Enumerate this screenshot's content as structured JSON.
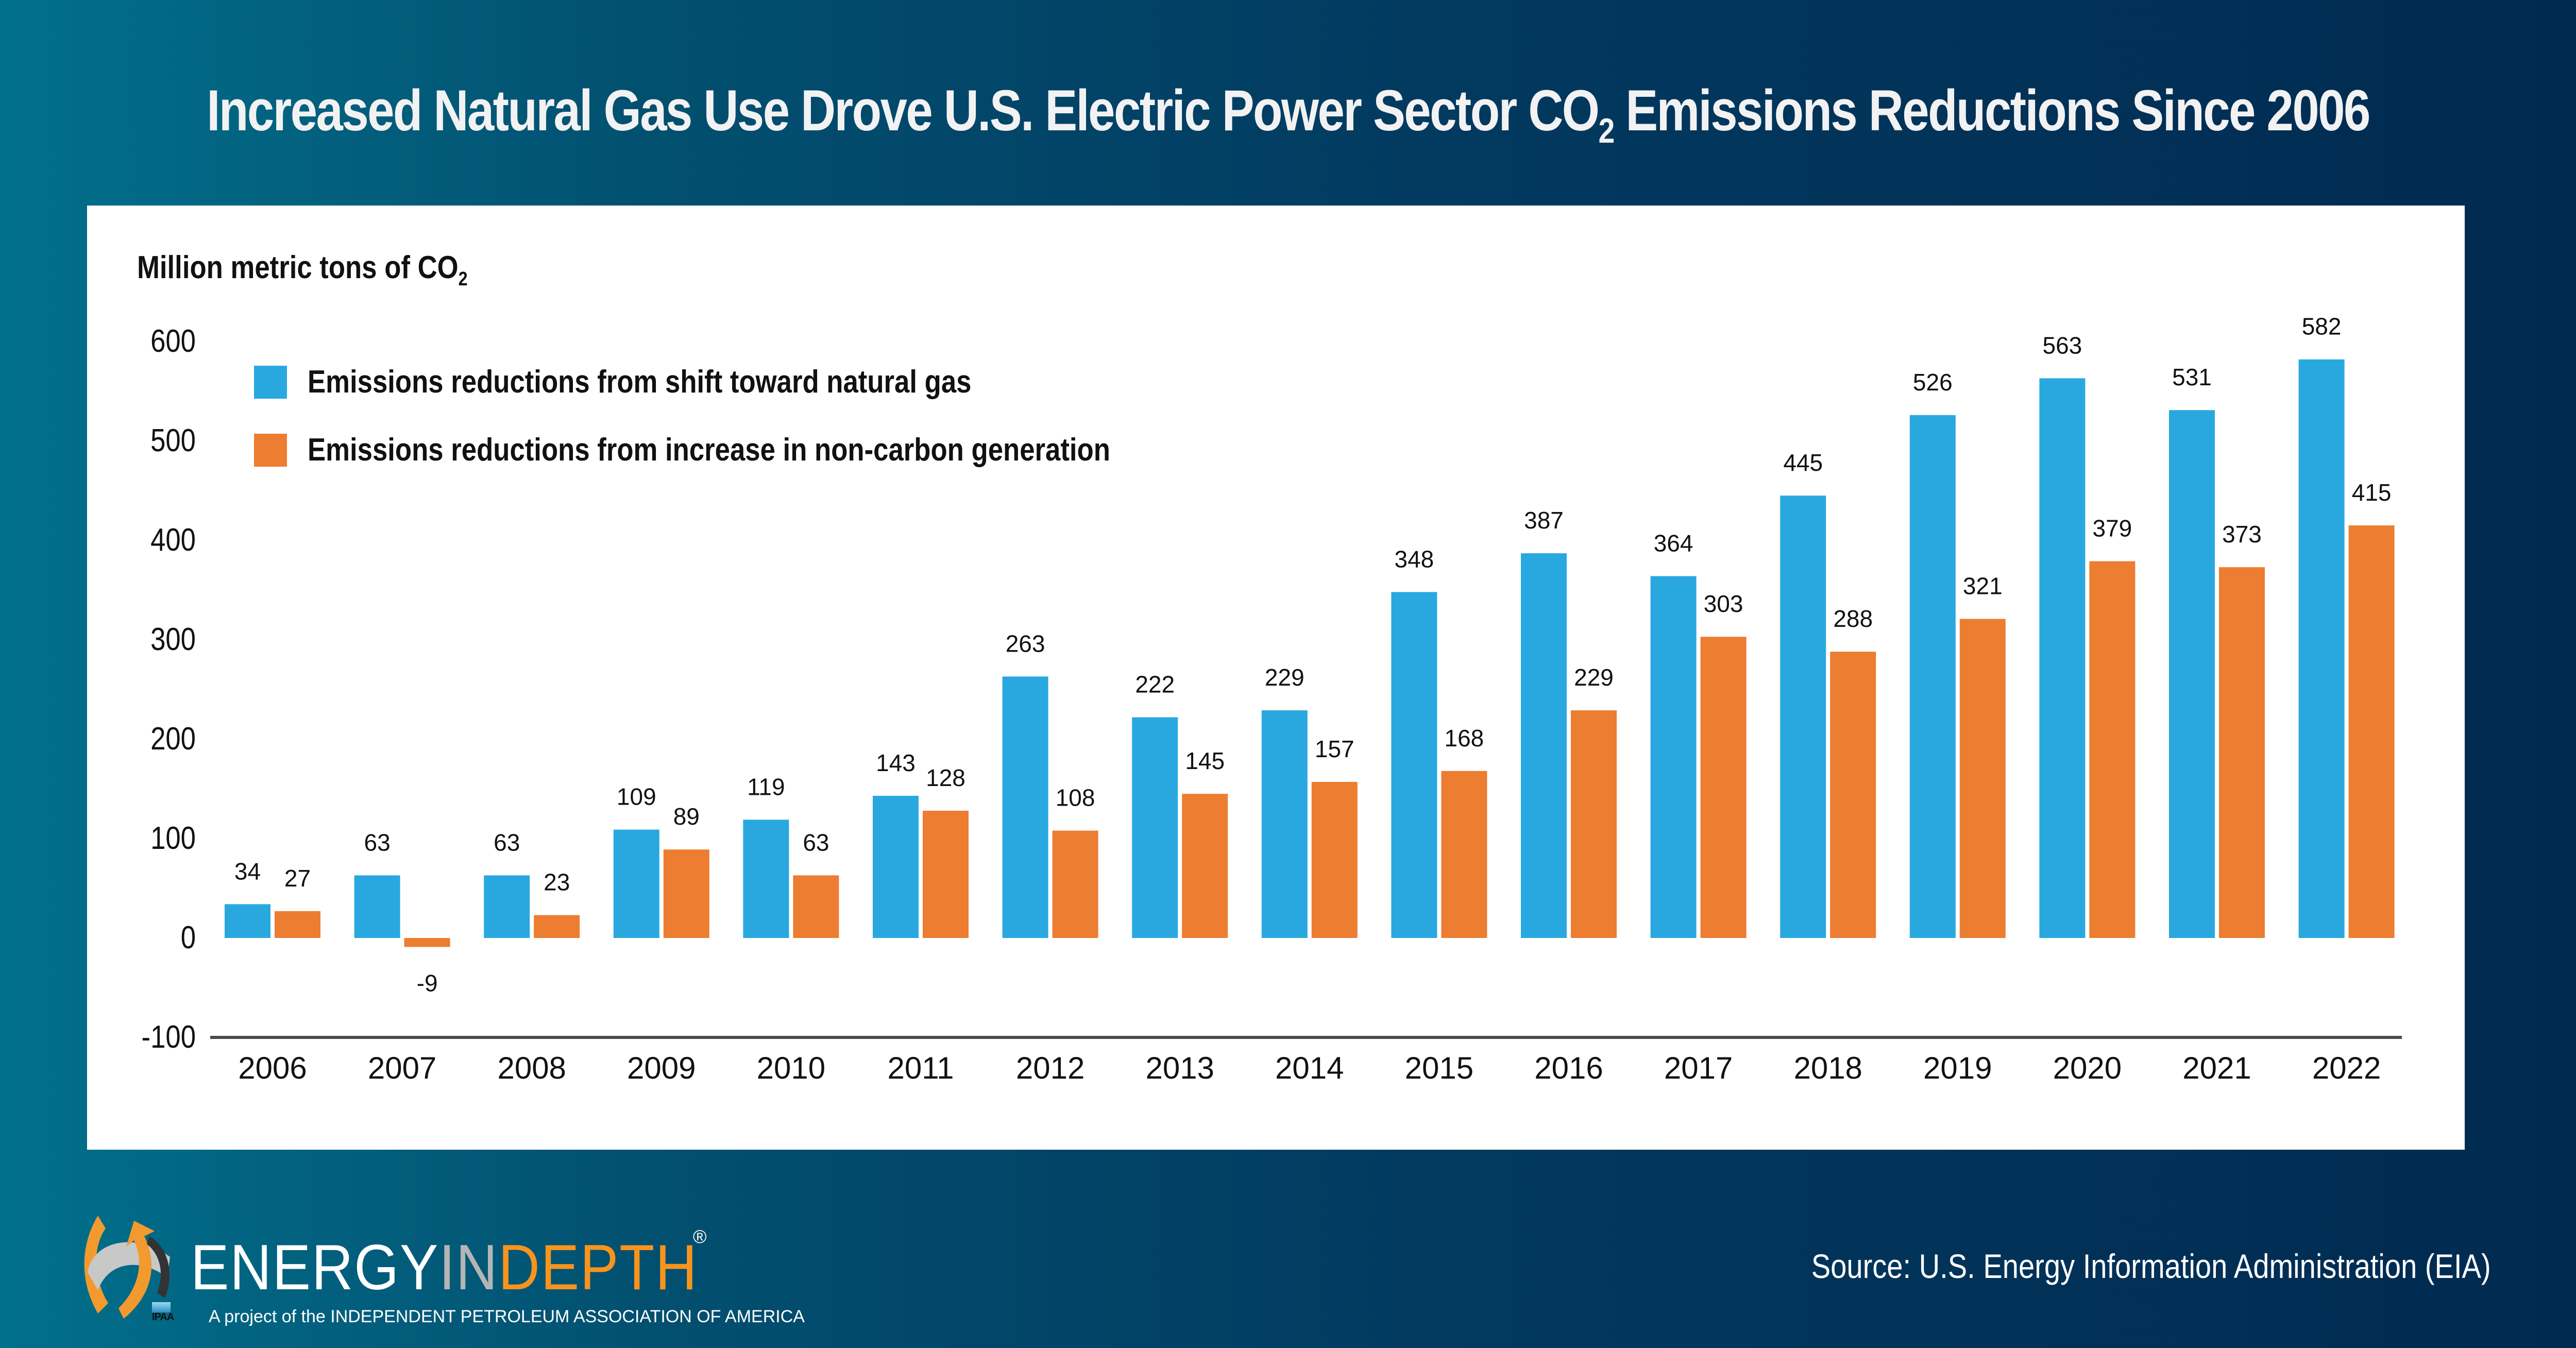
{
  "title": {
    "before_sub": "Increased Natural Gas Use Drove U.S. Electric Power Sector CO",
    "sub": "2",
    "after_sub": " Emissions Reductions Since 2006"
  },
  "unit_label": {
    "main": "Million metric tons of CO",
    "sub": "2"
  },
  "colors": {
    "gas": "#29a8e0",
    "noncarbon": "#ed7d31",
    "axis": "#4a4a4a"
  },
  "chart_data": {
    "type": "bar",
    "title": "Increased Natural Gas Use Drove U.S. Electric Power Sector CO2 Emissions Reductions Since 2006",
    "xlabel": "",
    "ylabel": "Million metric tons of CO2",
    "ylim": [
      -100,
      600
    ],
    "yticks": [
      600,
      500,
      400,
      300,
      200,
      100,
      0,
      -100
    ],
    "grid": false,
    "legend_position": "top-left",
    "categories": [
      "2006",
      "2007",
      "2008",
      "2009",
      "2010",
      "2011",
      "2012",
      "2013",
      "2014",
      "2015",
      "2016",
      "2017",
      "2018",
      "2019",
      "2020",
      "2021",
      "2022"
    ],
    "series": [
      {
        "name": "Emissions reductions from shift toward natural gas",
        "color": "#29a8e0",
        "values": [
          34,
          63,
          63,
          109,
          119,
          143,
          263,
          222,
          229,
          348,
          387,
          364,
          445,
          526,
          563,
          531,
          582
        ]
      },
      {
        "name": "Emissions reductions from increase in non-carbon generation",
        "color": "#ed7d31",
        "values": [
          27,
          -9,
          23,
          89,
          63,
          128,
          108,
          145,
          157,
          168,
          229,
          303,
          288,
          321,
          379,
          373,
          415
        ]
      }
    ]
  },
  "footer": {
    "logo_energy": "ENERGY",
    "logo_in": "IN",
    "logo_depth": "DEPTH",
    "logo_reg": "®",
    "logo_tagline": "A project of the INDEPENDENT PETROLEUM ASSOCIATION OF AMERICA",
    "ipaa": "IPAA",
    "source": "Source: U.S. Energy Information Administration (EIA)"
  }
}
